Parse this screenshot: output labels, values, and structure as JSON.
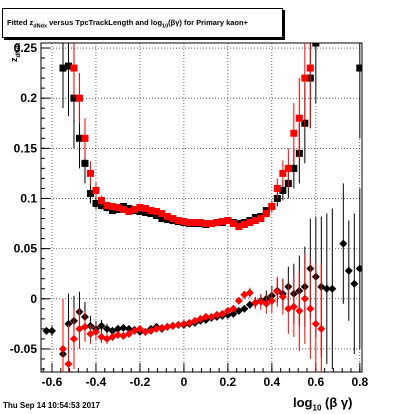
{
  "title": {
    "pre": "Fitted  z",
    "sub1": "dNdx",
    "mid": " versus TpcTrackLength and log",
    "sub2": "10",
    "post": "(βγ) for Primary kaon+"
  },
  "footer": "Thu Sep 14 10:54:53 2017",
  "xlabel": {
    "pre": "log",
    "sub": "10",
    "post": "(β γ)"
  },
  "ylabel": {
    "pre": "z",
    "sub": "dNdx"
  },
  "colors": {
    "series_black": "#000000",
    "series_red": "#ff0000",
    "grid": "#000000"
  },
  "chart_data": {
    "type": "scatter",
    "x_ticks": [
      "-0.6",
      "-0.4",
      "-0.2",
      "0",
      "0.2",
      "0.4",
      "0.6",
      "0.8"
    ],
    "y_ticks": [
      "-0.05",
      "0",
      "0.05",
      "0.1",
      "0.15",
      "0.2",
      "0.25"
    ],
    "xlim": [
      -0.65,
      0.81
    ],
    "ylim": [
      -0.073,
      0.255
    ],
    "grid": true,
    "series": [
      {
        "color": "black",
        "marker": "square",
        "points": [
          [
            -0.55,
            0.23,
            0.04
          ],
          [
            -0.525,
            0.232,
            0.05
          ],
          [
            -0.5,
            0.2,
            0.05
          ],
          [
            -0.475,
            0.16,
            0.03
          ],
          [
            -0.45,
            0.135,
            0.02
          ],
          [
            -0.425,
            0.105,
            0.01
          ],
          [
            -0.4,
            0.095,
            0.006
          ],
          [
            -0.375,
            0.093,
            0.004
          ],
          [
            -0.35,
            0.091,
            0.004
          ],
          [
            -0.325,
            0.088,
            0.003
          ],
          [
            -0.3,
            0.089,
            0.003
          ],
          [
            -0.275,
            0.092,
            0.003
          ],
          [
            -0.25,
            0.09,
            0.003
          ],
          [
            -0.225,
            0.088,
            0.003
          ],
          [
            -0.2,
            0.087,
            0.003
          ],
          [
            -0.175,
            0.086,
            0.003
          ],
          [
            -0.15,
            0.085,
            0.003
          ],
          [
            -0.125,
            0.083,
            0.003
          ],
          [
            -0.1,
            0.08,
            0.003
          ],
          [
            -0.075,
            0.079,
            0.003
          ],
          [
            -0.05,
            0.078,
            0.003
          ],
          [
            -0.025,
            0.077,
            0.003
          ],
          [
            0,
            0.076,
            0.003
          ],
          [
            0.025,
            0.075,
            0.003
          ],
          [
            0.05,
            0.075,
            0.003
          ],
          [
            0.075,
            0.075,
            0.003
          ],
          [
            0.1,
            0.074,
            0.003
          ],
          [
            0.125,
            0.075,
            0.003
          ],
          [
            0.15,
            0.076,
            0.003
          ],
          [
            0.175,
            0.076,
            0.003
          ],
          [
            0.2,
            0.078,
            0.003
          ],
          [
            0.225,
            0.076,
            0.003
          ],
          [
            0.25,
            0.075,
            0.003
          ],
          [
            0.275,
            0.076,
            0.003
          ],
          [
            0.3,
            0.078,
            0.003
          ],
          [
            0.325,
            0.081,
            0.003
          ],
          [
            0.35,
            0.082,
            0.003
          ],
          [
            0.375,
            0.088,
            0.003
          ],
          [
            0.4,
            0.092,
            0.005
          ],
          [
            0.425,
            0.1,
            0.008
          ],
          [
            0.45,
            0.108,
            0.01
          ],
          [
            0.475,
            0.115,
            0.015
          ],
          [
            0.5,
            0.13,
            0.02
          ],
          [
            0.525,
            0.145,
            0.03
          ],
          [
            0.55,
            0.175,
            0.04
          ],
          [
            0.575,
            0.22,
            0.05
          ],
          [
            0.6,
            0.255,
            0.06
          ],
          [
            0.8,
            0.23,
            0.07
          ]
        ]
      },
      {
        "color": "red",
        "marker": "square",
        "points": [
          [
            -0.5,
            0.23,
            0.03
          ],
          [
            -0.475,
            0.2,
            0.025
          ],
          [
            -0.45,
            0.16,
            0.02
          ],
          [
            -0.425,
            0.125,
            0.012
          ],
          [
            -0.4,
            0.108,
            0.008
          ],
          [
            -0.375,
            0.098,
            0.005
          ],
          [
            -0.35,
            0.093,
            0.004
          ],
          [
            -0.325,
            0.092,
            0.003
          ],
          [
            -0.3,
            0.091,
            0.003
          ],
          [
            -0.275,
            0.089,
            0.003
          ],
          [
            -0.25,
            0.087,
            0.003
          ],
          [
            -0.225,
            0.089,
            0.003
          ],
          [
            -0.2,
            0.091,
            0.003
          ],
          [
            -0.175,
            0.09,
            0.003
          ],
          [
            -0.15,
            0.088,
            0.003
          ],
          [
            -0.125,
            0.087,
            0.003
          ],
          [
            -0.1,
            0.085,
            0.003
          ],
          [
            -0.075,
            0.082,
            0.003
          ],
          [
            -0.05,
            0.08,
            0.003
          ],
          [
            -0.025,
            0.078,
            0.003
          ],
          [
            0,
            0.077,
            0.003
          ],
          [
            0.025,
            0.076,
            0.003
          ],
          [
            0.05,
            0.076,
            0.003
          ],
          [
            0.075,
            0.076,
            0.003
          ],
          [
            0.1,
            0.075,
            0.003
          ],
          [
            0.125,
            0.075,
            0.003
          ],
          [
            0.15,
            0.076,
            0.003
          ],
          [
            0.175,
            0.077,
            0.003
          ],
          [
            0.2,
            0.078,
            0.003
          ],
          [
            0.225,
            0.075,
            0.003
          ],
          [
            0.25,
            0.072,
            0.003
          ],
          [
            0.275,
            0.074,
            0.003
          ],
          [
            0.3,
            0.076,
            0.003
          ],
          [
            0.325,
            0.078,
            0.003
          ],
          [
            0.35,
            0.08,
            0.003
          ],
          [
            0.375,
            0.085,
            0.004
          ],
          [
            0.4,
            0.092,
            0.006
          ],
          [
            0.425,
            0.11,
            0.01
          ],
          [
            0.45,
            0.125,
            0.013
          ],
          [
            0.475,
            0.13,
            0.02
          ],
          [
            0.5,
            0.165,
            0.03
          ],
          [
            0.525,
            0.18,
            0.04
          ],
          [
            0.55,
            0.22,
            0.05
          ],
          [
            0.575,
            0.23,
            0.06
          ]
        ]
      },
      {
        "color": "black",
        "marker": "diamond",
        "points": [
          [
            -0.625,
            -0.032,
            0.003
          ],
          [
            -0.6,
            -0.032,
            0.005
          ],
          [
            -0.55,
            -0.055,
            0.03
          ],
          [
            -0.525,
            -0.025,
            0.03
          ],
          [
            -0.5,
            -0.022,
            0.025
          ],
          [
            -0.475,
            -0.013,
            0.02
          ],
          [
            -0.45,
            -0.018,
            0.015
          ],
          [
            -0.425,
            -0.027,
            0.01
          ],
          [
            -0.4,
            -0.03,
            0.008
          ],
          [
            -0.375,
            -0.027,
            0.006
          ],
          [
            -0.35,
            -0.03,
            0.005
          ],
          [
            -0.325,
            -0.032,
            0.004
          ],
          [
            -0.3,
            -0.03,
            0.004
          ],
          [
            -0.275,
            -0.029,
            0.003
          ],
          [
            -0.25,
            -0.03,
            0.003
          ],
          [
            -0.225,
            -0.031,
            0.003
          ],
          [
            -0.2,
            -0.033,
            0.003
          ],
          [
            -0.175,
            -0.033,
            0.003
          ],
          [
            -0.15,
            -0.03,
            0.003
          ],
          [
            -0.125,
            -0.028,
            0.003
          ],
          [
            -0.1,
            -0.03,
            0.003
          ],
          [
            -0.075,
            -0.028,
            0.003
          ],
          [
            -0.05,
            -0.027,
            0.003
          ],
          [
            -0.025,
            -0.026,
            0.003
          ],
          [
            0,
            -0.026,
            0.003
          ],
          [
            0.025,
            -0.025,
            0.003
          ],
          [
            0.05,
            -0.024,
            0.003
          ],
          [
            0.075,
            -0.022,
            0.003
          ],
          [
            0.1,
            -0.021,
            0.003
          ],
          [
            0.125,
            -0.019,
            0.003
          ],
          [
            0.15,
            -0.018,
            0.003
          ],
          [
            0.175,
            -0.017,
            0.003
          ],
          [
            0.2,
            -0.016,
            0.003
          ],
          [
            0.225,
            -0.015,
            0.003
          ],
          [
            0.25,
            -0.012,
            0.003
          ],
          [
            0.275,
            -0.01,
            0.003
          ],
          [
            0.3,
            -0.006,
            0.004
          ],
          [
            0.325,
            -0.004,
            0.005
          ],
          [
            0.35,
            -0.002,
            0.006
          ],
          [
            0.375,
            0.0,
            0.008
          ],
          [
            0.4,
            0.003,
            0.01
          ],
          [
            0.425,
            0.008,
            0.012
          ],
          [
            0.45,
            0.005,
            0.015
          ],
          [
            0.475,
            0.012,
            0.02
          ],
          [
            0.5,
            0.005,
            0.03
          ],
          [
            0.525,
            0.008,
            0.035
          ],
          [
            0.55,
            0.012,
            0.04
          ],
          [
            0.575,
            0.03,
            0.05
          ],
          [
            0.6,
            0.022,
            0.06
          ],
          [
            0.625,
            0.012,
            0.07
          ],
          [
            0.65,
            0.01,
            0.075
          ],
          [
            0.675,
            0.01,
            0.08
          ],
          [
            0.725,
            0.055,
            0.06
          ],
          [
            0.75,
            0.028,
            0.05
          ],
          [
            0.775,
            0.015,
            0.07
          ],
          [
            0.8,
            0.03,
            0.08
          ]
        ]
      },
      {
        "color": "red",
        "marker": "diamond",
        "points": [
          [
            -0.55,
            -0.05,
            0.05
          ],
          [
            -0.525,
            -0.065,
            0.04
          ],
          [
            -0.5,
            -0.04,
            0.03
          ],
          [
            -0.475,
            -0.03,
            0.02
          ],
          [
            -0.45,
            -0.028,
            0.015
          ],
          [
            -0.425,
            -0.035,
            0.01
          ],
          [
            -0.4,
            -0.033,
            0.008
          ],
          [
            -0.375,
            -0.038,
            0.006
          ],
          [
            -0.35,
            -0.04,
            0.005
          ],
          [
            -0.325,
            -0.038,
            0.004
          ],
          [
            -0.3,
            -0.036,
            0.004
          ],
          [
            -0.275,
            -0.037,
            0.003
          ],
          [
            -0.25,
            -0.035,
            0.003
          ],
          [
            -0.225,
            -0.032,
            0.003
          ],
          [
            -0.2,
            -0.03,
            0.003
          ],
          [
            -0.175,
            -0.033,
            0.003
          ],
          [
            -0.15,
            -0.032,
            0.003
          ],
          [
            -0.125,
            -0.03,
            0.003
          ],
          [
            -0.1,
            -0.029,
            0.003
          ],
          [
            -0.075,
            -0.028,
            0.003
          ],
          [
            -0.05,
            -0.027,
            0.003
          ],
          [
            -0.025,
            -0.026,
            0.003
          ],
          [
            0,
            -0.025,
            0.003
          ],
          [
            0.025,
            -0.024,
            0.003
          ],
          [
            0.05,
            -0.022,
            0.003
          ],
          [
            0.075,
            -0.02,
            0.003
          ],
          [
            0.1,
            -0.018,
            0.003
          ],
          [
            0.125,
            -0.018,
            0.003
          ],
          [
            0.15,
            -0.016,
            0.003
          ],
          [
            0.175,
            -0.015,
            0.003
          ],
          [
            0.2,
            -0.012,
            0.003
          ],
          [
            0.225,
            -0.01,
            0.003
          ],
          [
            0.25,
            -0.002,
            0.003
          ],
          [
            0.275,
            0.004,
            0.004
          ],
          [
            0.3,
            0.006,
            0.005
          ],
          [
            0.325,
            -0.004,
            0.006
          ],
          [
            0.35,
            -0.003,
            0.008
          ],
          [
            0.375,
            -0.005,
            0.01
          ],
          [
            0.4,
            -0.002,
            0.012
          ],
          [
            0.425,
            0.007,
            0.015
          ],
          [
            0.45,
            0.002,
            0.018
          ],
          [
            0.475,
            -0.01,
            0.025
          ],
          [
            0.5,
            -0.008,
            0.03
          ],
          [
            0.525,
            -0.012,
            0.04
          ],
          [
            0.55,
            0.0,
            0.045
          ],
          [
            0.575,
            -0.01,
            0.05
          ],
          [
            0.6,
            -0.025,
            0.06
          ],
          [
            0.625,
            -0.03,
            0.065
          ]
        ]
      }
    ]
  }
}
